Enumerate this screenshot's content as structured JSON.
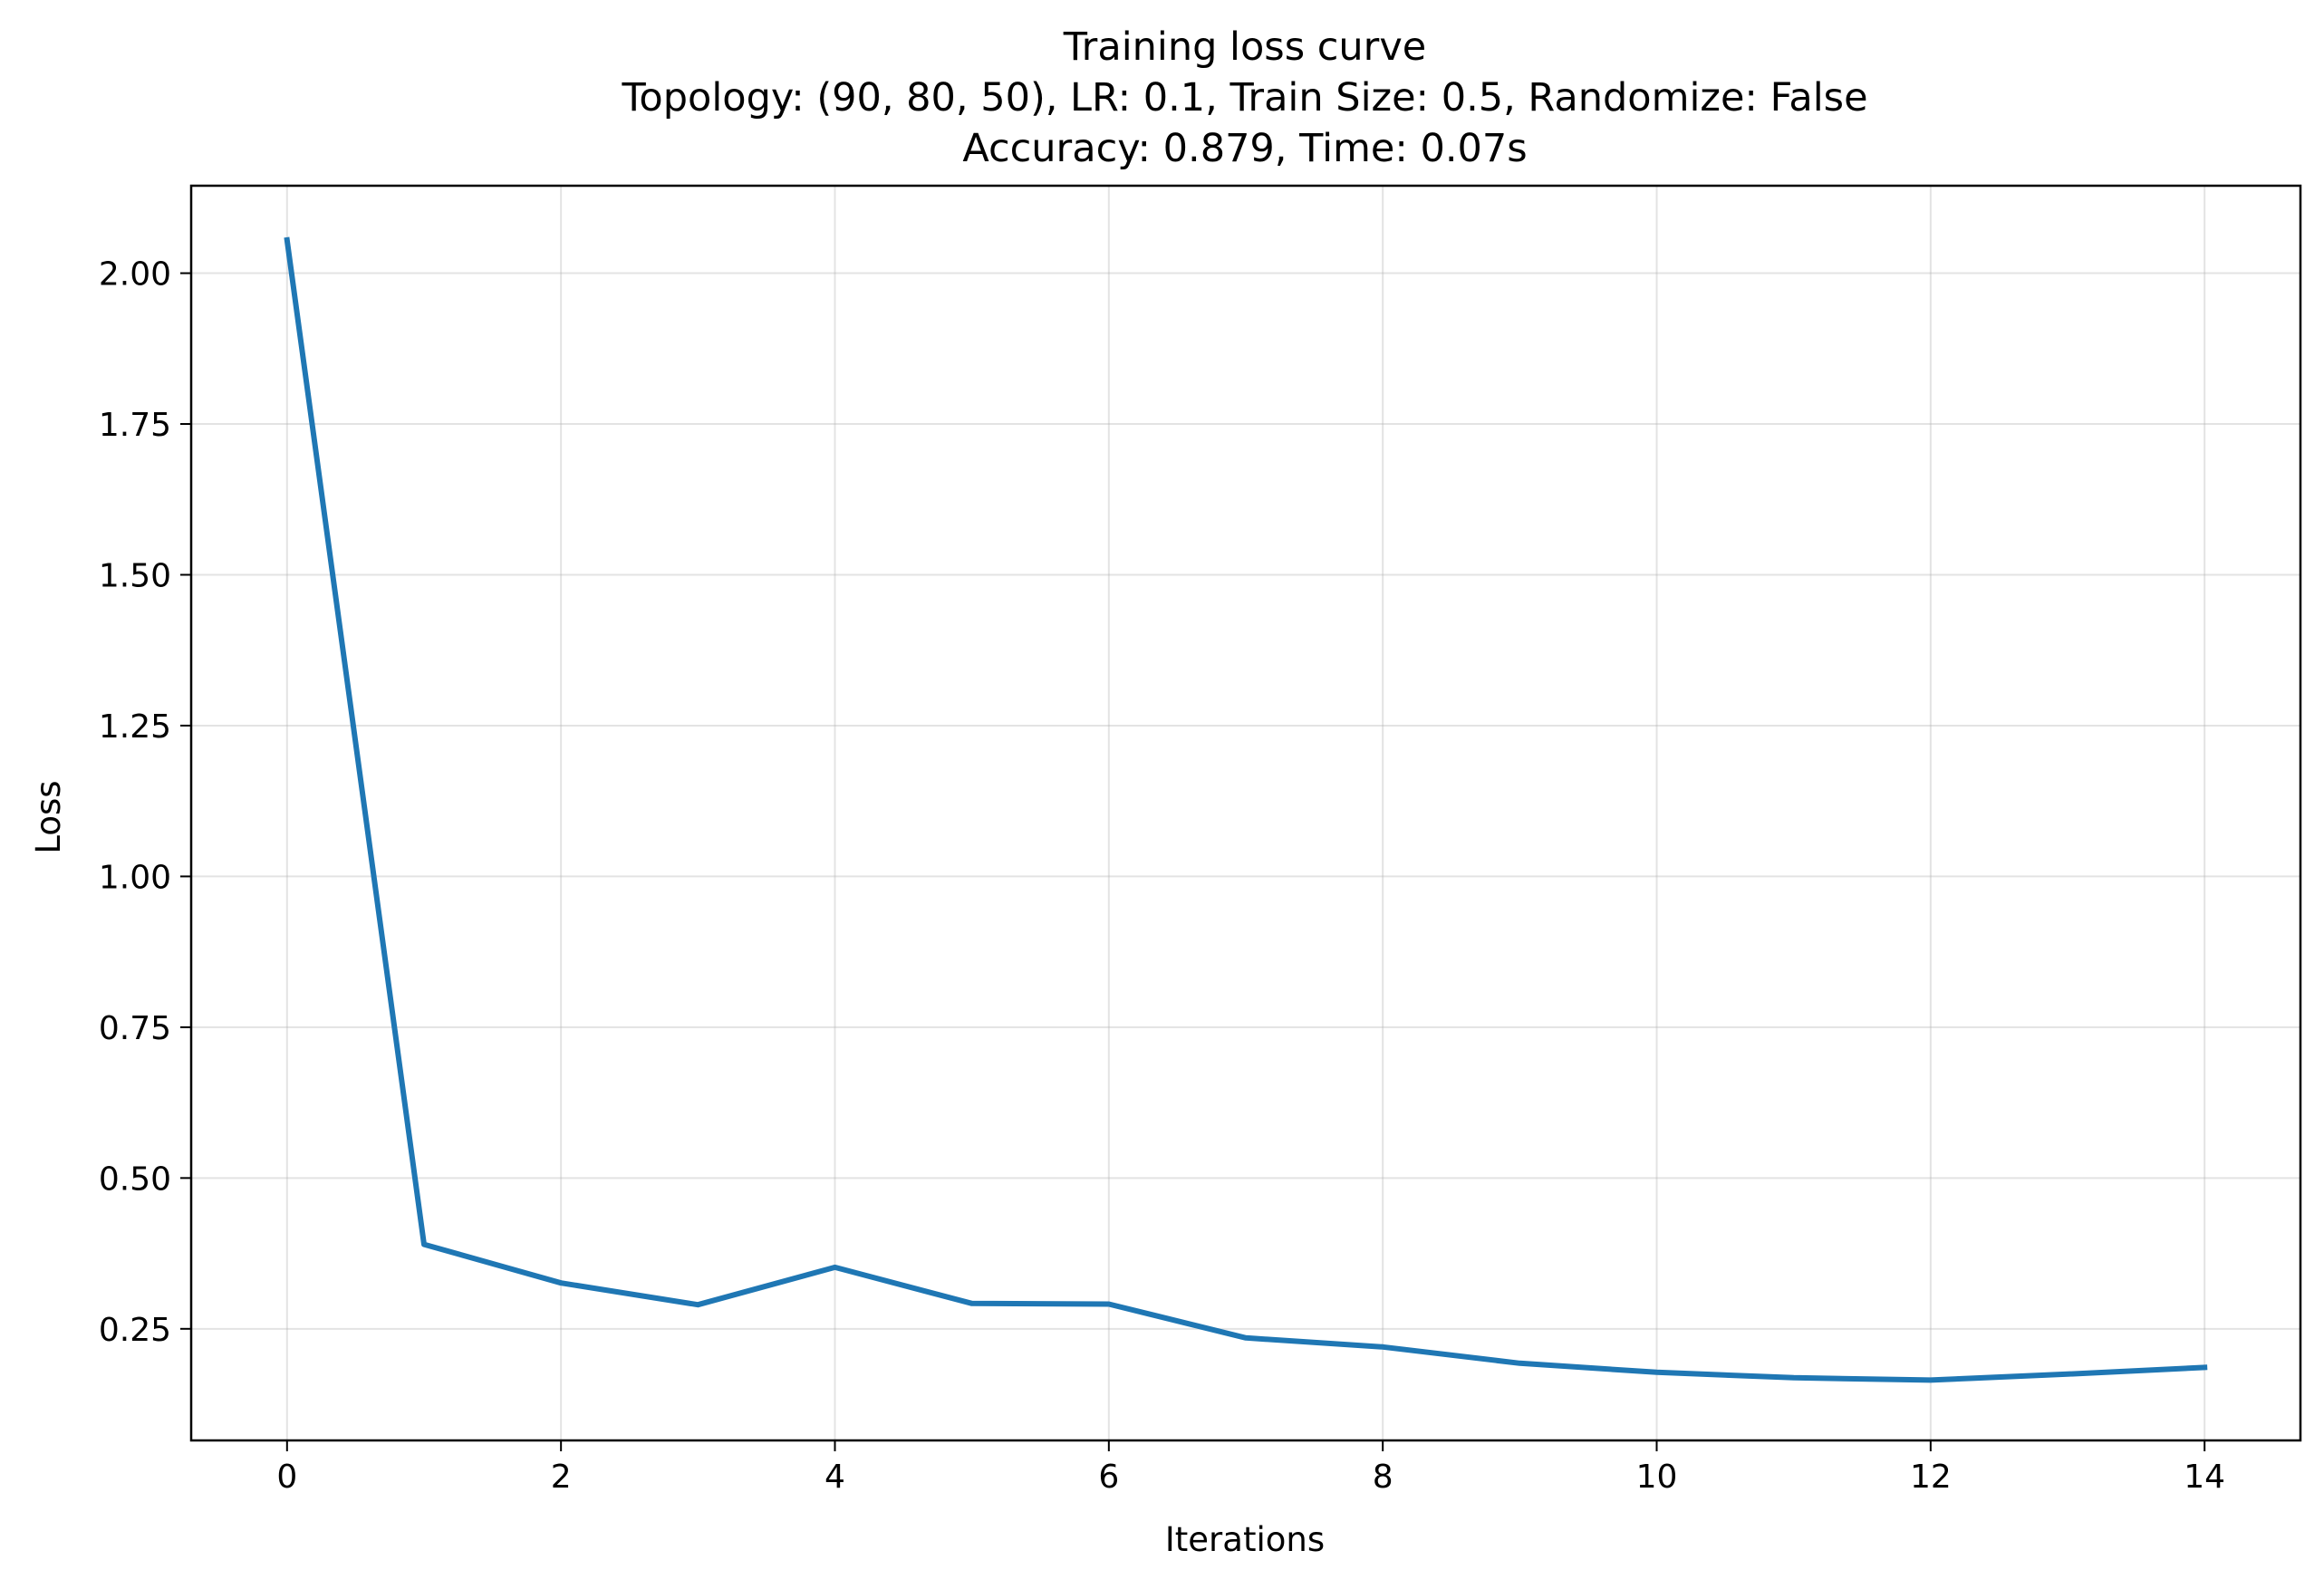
{
  "chart_data": {
    "type": "line",
    "title_lines": [
      "Training loss curve",
      "Topology: (90, 80, 50), LR: 0.1, Train Size: 0.5, Randomize: False",
      "Accuracy: 0.879, Time: 0.07s"
    ],
    "xlabel": "Iterations",
    "ylabel": "Loss",
    "xlim": [
      -0.7,
      14.7
    ],
    "ylim": [
      0.065,
      2.145
    ],
    "xticks": [
      0,
      2,
      4,
      6,
      8,
      10,
      12,
      14
    ],
    "xtick_labels": [
      "0",
      "2",
      "4",
      "6",
      "8",
      "10",
      "12",
      "14"
    ],
    "yticks": [
      0.25,
      0.5,
      0.75,
      1.0,
      1.25,
      1.5,
      1.75,
      2.0
    ],
    "ytick_labels": [
      "0.25",
      "0.50",
      "0.75",
      "1.00",
      "1.25",
      "1.50",
      "1.75",
      "2.00"
    ],
    "grid": true,
    "series": [
      {
        "x": [
          0,
          1,
          2,
          3,
          4,
          5,
          6,
          7,
          8,
          9,
          10,
          11,
          12,
          13,
          14
        ],
        "values": [
          2.055,
          0.39,
          0.326,
          0.29,
          0.352,
          0.292,
          0.291,
          0.235,
          0.22,
          0.193,
          0.178,
          0.169,
          0.165,
          0.175,
          0.186
        ],
        "color": "#1f77b4"
      }
    ]
  }
}
